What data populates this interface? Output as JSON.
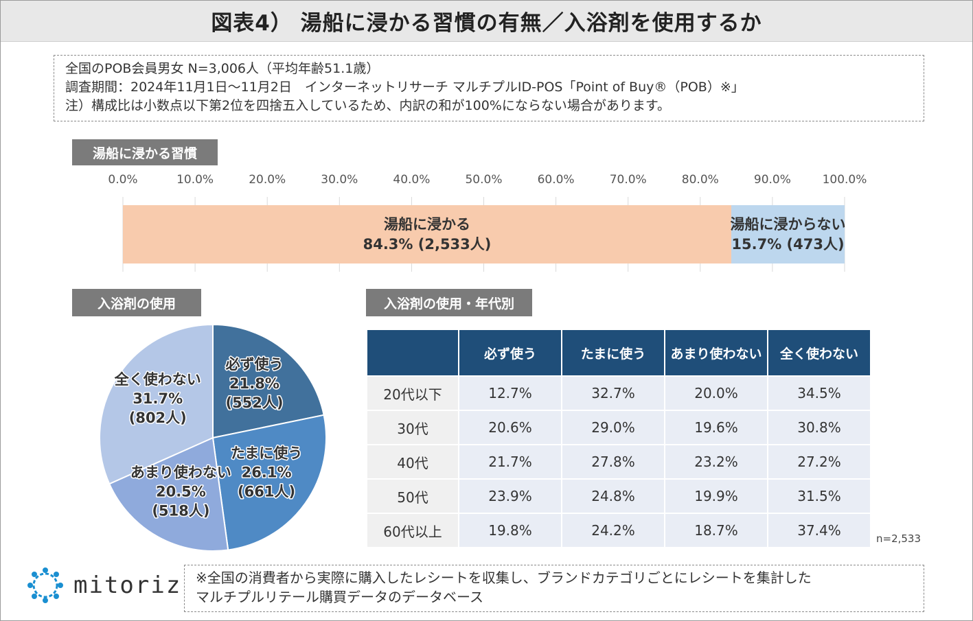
{
  "title": "図表4） 湯船に浸かる習慣の有無／入浴剤を使用するか",
  "notes": [
    "全国のPOB会員男女 N=3,006人（平均年齢51.1歳）",
    "調査期間：2024年11月1日～11月2日　インターネットリサーチ マルチプルID-POS「Point of Buy®（POB）※」",
    "注）構成比は小数点以下第2位を四捨五入しているため、内訳の和が100%にならない場合があります。"
  ],
  "section_labels": {
    "bath": "湯船に浸かる習慣",
    "bath_salt": "入浴剤の使用",
    "by_age": "入浴剤の使用・年代別"
  },
  "chart_data": [
    {
      "type": "bar",
      "orientation": "horizontal-stacked",
      "title": "湯船に浸かる習慣",
      "xlim": [
        0,
        100
      ],
      "ticks": [
        "0.0%",
        "10.0%",
        "20.0%",
        "30.0%",
        "40.0%",
        "50.0%",
        "60.0%",
        "70.0%",
        "80.0%",
        "90.0%",
        "100.0%"
      ],
      "grid": true,
      "series": [
        {
          "name": "湯船に浸かる",
          "value": 84.3,
          "label": "84.3% (2,533人)",
          "color": "#f8cbad"
        },
        {
          "name": "湯船に浸からない",
          "value": 15.7,
          "label": "15.7% (473人)",
          "color": "#bdd7ee"
        }
      ]
    },
    {
      "type": "pie",
      "title": "入浴剤の使用",
      "slices": [
        {
          "name": "必ず使う",
          "value": 21.8,
          "label": "21.8%",
          "count": "(552人)",
          "color": "#41719c"
        },
        {
          "name": "たまに使う",
          "value": 26.1,
          "label": "26.1%",
          "count": "(661人)",
          "color": "#4f8ac5"
        },
        {
          "name": "あまり使わない",
          "value": 20.5,
          "label": "20.5%",
          "count": "(518人)",
          "color": "#8faadc"
        },
        {
          "name": "全く使わない",
          "value": 31.7,
          "label": "31.7%",
          "count": "(802人)",
          "color": "#b4c7e7"
        }
      ]
    },
    {
      "type": "table",
      "title": "入浴剤の使用・年代別",
      "columns": [
        "",
        "必ず使う",
        "たまに使う",
        "あまり使わない",
        "全く使わない"
      ],
      "rows": [
        [
          "20代以下",
          "12.7%",
          "32.7%",
          "20.0%",
          "34.5%"
        ],
        [
          "30代",
          "20.6%",
          "29.0%",
          "19.6%",
          "30.8%"
        ],
        [
          "40代",
          "21.7%",
          "27.8%",
          "23.2%",
          "27.2%"
        ],
        [
          "50代",
          "23.9%",
          "24.8%",
          "19.9%",
          "31.5%"
        ],
        [
          "60代以上",
          "19.8%",
          "24.2%",
          "18.7%",
          "37.4%"
        ]
      ],
      "note": "n=2,533"
    }
  ],
  "logo_text": "mitoriz",
  "footnote": [
    "※全国の消費者から実際に購入したレシートを収集し、ブランドカテゴリごとにレシートを集計した",
    "マルチプルリテール購買データのデータベース"
  ]
}
